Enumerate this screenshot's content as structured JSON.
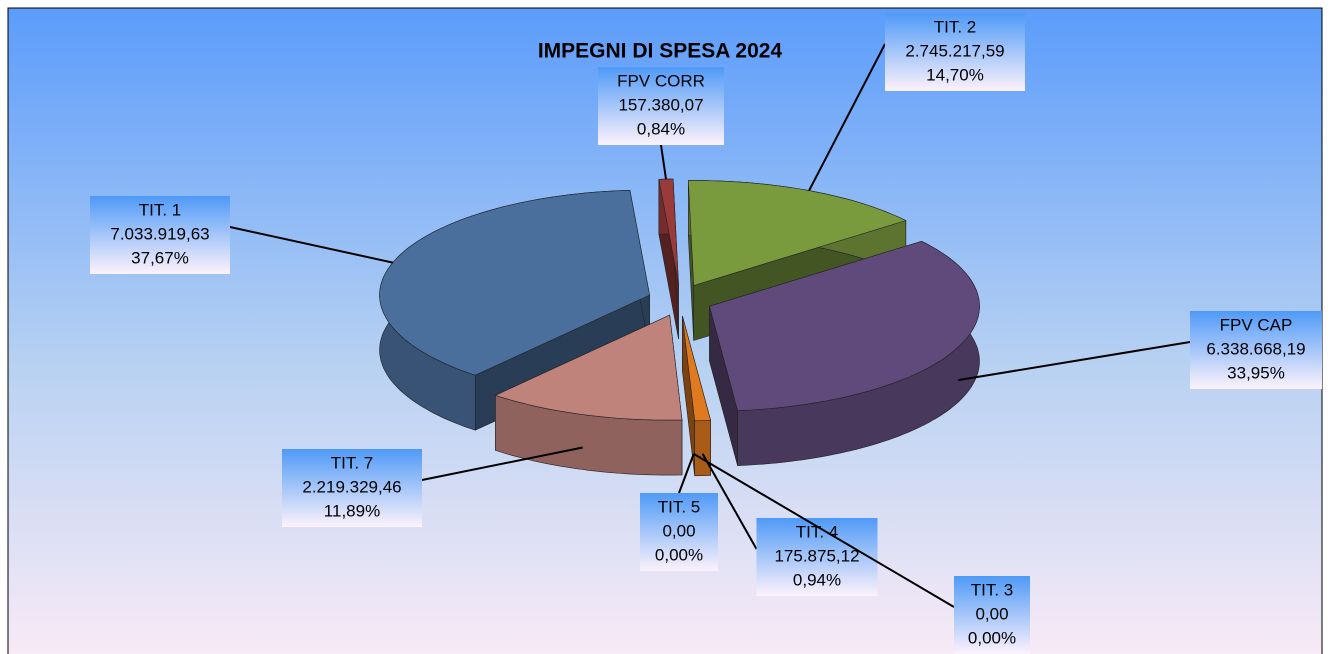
{
  "chart_data": {
    "type": "pie",
    "title": "IMPEGNI DI SPESA 2024",
    "categories": [
      "TIT. 2",
      "FPV CAP",
      "TIT. 4",
      "TIT. 3",
      "TIT. 5",
      "TIT. 7",
      "TIT. 1",
      "FPV CORR"
    ],
    "values": [
      2745217.59,
      6338668.19,
      175875.12,
      0,
      0,
      2219329.46,
      7033919.63,
      157380.07
    ],
    "value_labels": [
      "2.745.217,59",
      "6.338.668,19",
      "175.875,12",
      "0,00",
      "0,00",
      "2.219.329,46",
      "7.033.919,63",
      "157.380,07"
    ],
    "percents": [
      14.7,
      33.95,
      0.94,
      0,
      0,
      11.89,
      37.67,
      0.84
    ],
    "percent_labels": [
      "14,70%",
      "33,95%",
      "0,94%",
      "0,00%",
      "0,00%",
      "11,89%",
      "37,67%",
      "0,84%"
    ],
    "colors": [
      "#7a9a3e",
      "#604a7b",
      "#e07a1f",
      "#8c8c8c",
      "#4a5668",
      "#c0837c",
      "#4a6f9c",
      "#9b3a3a"
    ]
  }
}
